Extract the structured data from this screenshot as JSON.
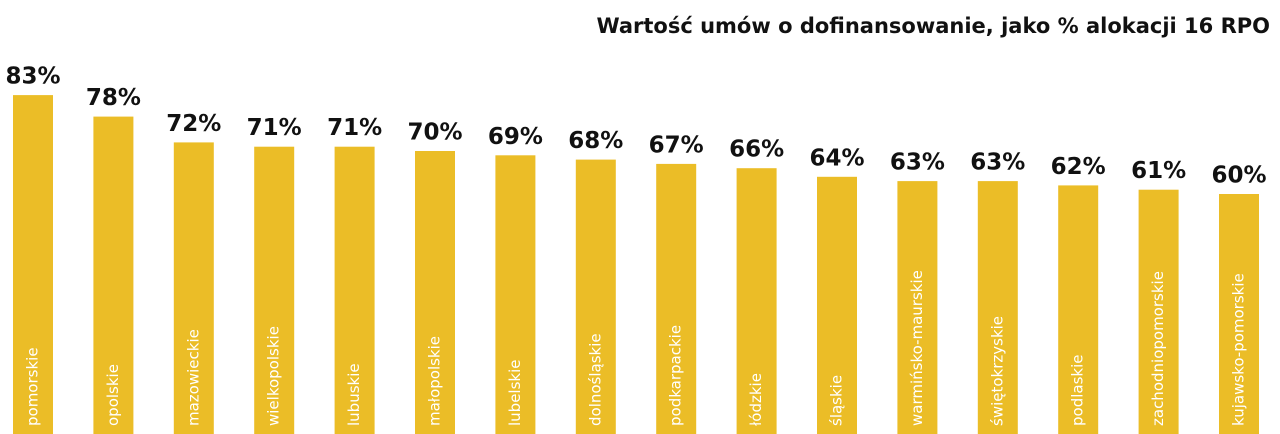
{
  "chart_data": {
    "type": "bar",
    "title": "Wartość umów o dofinansowanie, jako % alokacji 16 RPO",
    "categories": [
      "pomorskie",
      "opolskie",
      "mazowieckie",
      "wielkopolskie",
      "lubuskie",
      "małopolskie",
      "lubelskie",
      "dolnośląskie",
      "podkarpackie",
      "łódzkie",
      "śląskie",
      "warmińsko-maurskie",
      "świętokrzyskie",
      "podlaskie",
      "zachodniopomorskie",
      "kujawsko-pomorskie"
    ],
    "values": [
      83,
      78,
      72,
      71,
      71,
      70,
      69,
      68,
      67,
      66,
      64,
      63,
      63,
      62,
      61,
      60
    ],
    "value_labels": [
      "83%",
      "78%",
      "72%",
      "71%",
      "71%",
      "70%",
      "69%",
      "68%",
      "67%",
      "66%",
      "64%",
      "63%",
      "63%",
      "62%",
      "61%",
      "60%"
    ],
    "color": "#ebbd27"
  }
}
